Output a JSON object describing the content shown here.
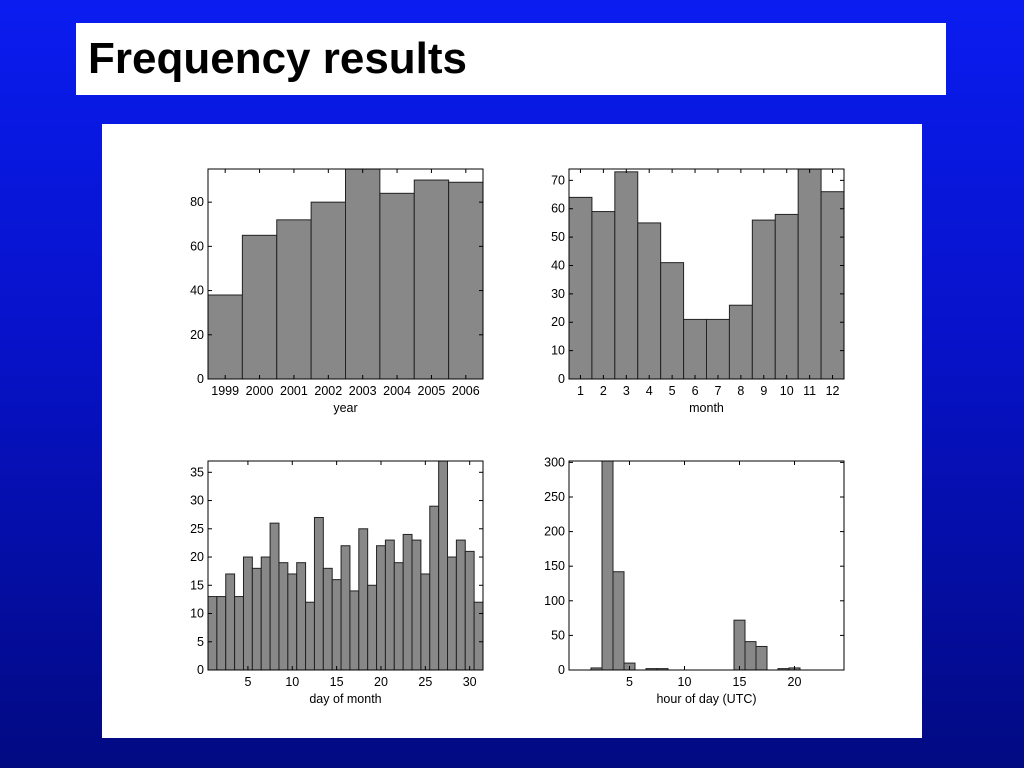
{
  "slide": {
    "title": "Frequency results",
    "background_colors": [
      "#0a1cf0",
      "#020a82"
    ],
    "bar_fill": "#888888",
    "bar_stroke": "#222222"
  },
  "chart_data": [
    {
      "type": "bar",
      "xlabel": "year",
      "ylabel": "",
      "categories": [
        "1999",
        "2000",
        "2001",
        "2002",
        "2003",
        "2004",
        "2005",
        "2006"
      ],
      "values": [
        38,
        65,
        72,
        80,
        95,
        84,
        90,
        89
      ],
      "ylim": [
        0,
        95
      ],
      "yticks": [
        0,
        20,
        40,
        60,
        80
      ]
    },
    {
      "type": "bar",
      "xlabel": "month",
      "ylabel": "",
      "categories": [
        "1",
        "2",
        "3",
        "4",
        "5",
        "6",
        "7",
        "8",
        "9",
        "10",
        "11",
        "12"
      ],
      "values": [
        64,
        59,
        73,
        55,
        41,
        21,
        21,
        26,
        56,
        58,
        74,
        66
      ],
      "ylim": [
        0,
        74
      ],
      "yticks": [
        0,
        10,
        20,
        30,
        40,
        50,
        60,
        70
      ]
    },
    {
      "type": "bar",
      "xlabel": "day of month",
      "ylabel": "",
      "x": [
        1,
        2,
        3,
        4,
        5,
        6,
        7,
        8,
        9,
        10,
        11,
        12,
        13,
        14,
        15,
        16,
        17,
        18,
        19,
        20,
        21,
        22,
        23,
        24,
        25,
        26,
        27,
        28,
        29,
        30,
        31
      ],
      "values": [
        13,
        13,
        17,
        13,
        20,
        18,
        20,
        26,
        19,
        17,
        19,
        12,
        27,
        18,
        16,
        22,
        14,
        25,
        15,
        22,
        23,
        19,
        24,
        23,
        17,
        29,
        37,
        20,
        23,
        21,
        12
      ],
      "xlim": [
        0.5,
        31.5
      ],
      "ylim": [
        0,
        37
      ],
      "xticks": [
        5,
        10,
        15,
        20,
        25,
        30
      ],
      "yticks": [
        0,
        5,
        10,
        15,
        20,
        25,
        30,
        35
      ]
    },
    {
      "type": "bar",
      "xlabel": "hour of day (UTC)",
      "ylabel": "",
      "x": [
        1,
        2,
        3,
        4,
        5,
        6,
        7,
        8,
        9,
        10,
        11,
        12,
        13,
        14,
        15,
        16,
        17,
        18,
        19,
        20,
        21,
        22,
        23,
        24
      ],
      "values": [
        0,
        3,
        302,
        142,
        10,
        0,
        2,
        2,
        0,
        0,
        0,
        0,
        0,
        0,
        72,
        41,
        34,
        0,
        2,
        3,
        0,
        0,
        0,
        0
      ],
      "xlim": [
        -0.5,
        24.5
      ],
      "ylim": [
        0,
        302
      ],
      "xticks": [
        5,
        10,
        15,
        20
      ],
      "yticks": [
        0,
        50,
        100,
        150,
        200,
        250,
        300
      ]
    }
  ]
}
